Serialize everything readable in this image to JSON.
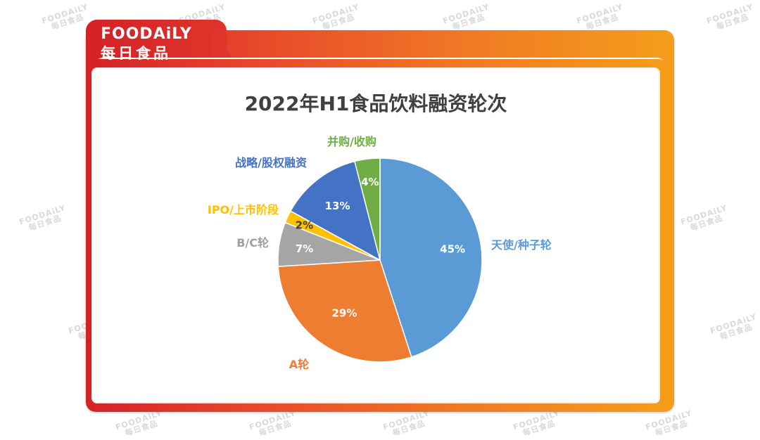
{
  "brand": {
    "name_en": "FOODAiLY",
    "name_cn": "每日食品"
  },
  "watermark": {
    "line1": "FOODAiLY",
    "line2": "每日食品"
  },
  "chart_data": {
    "type": "pie",
    "title": "2022年H1食品饮料融资轮次",
    "slices": [
      {
        "label": "天使/种子轮",
        "value": 45,
        "display": "45%",
        "color": "#5b9bd5"
      },
      {
        "label": "A轮",
        "value": 29,
        "display": "29%",
        "color": "#ed7d31"
      },
      {
        "label": "B/C轮",
        "value": 7,
        "display": "7%",
        "color": "#a5a5a5"
      },
      {
        "label": "IPO/上市阶段",
        "value": 2,
        "display": "2%",
        "color": "#ffc000"
      },
      {
        "label": "战略/股权融资",
        "value": 13,
        "display": "13%",
        "color": "#4472c4"
      },
      {
        "label": "并购/收购",
        "value": 4,
        "display": "4%",
        "color": "#70ad47"
      }
    ],
    "start": "12 o'clock",
    "direction": "clockwise",
    "legend": "none"
  }
}
